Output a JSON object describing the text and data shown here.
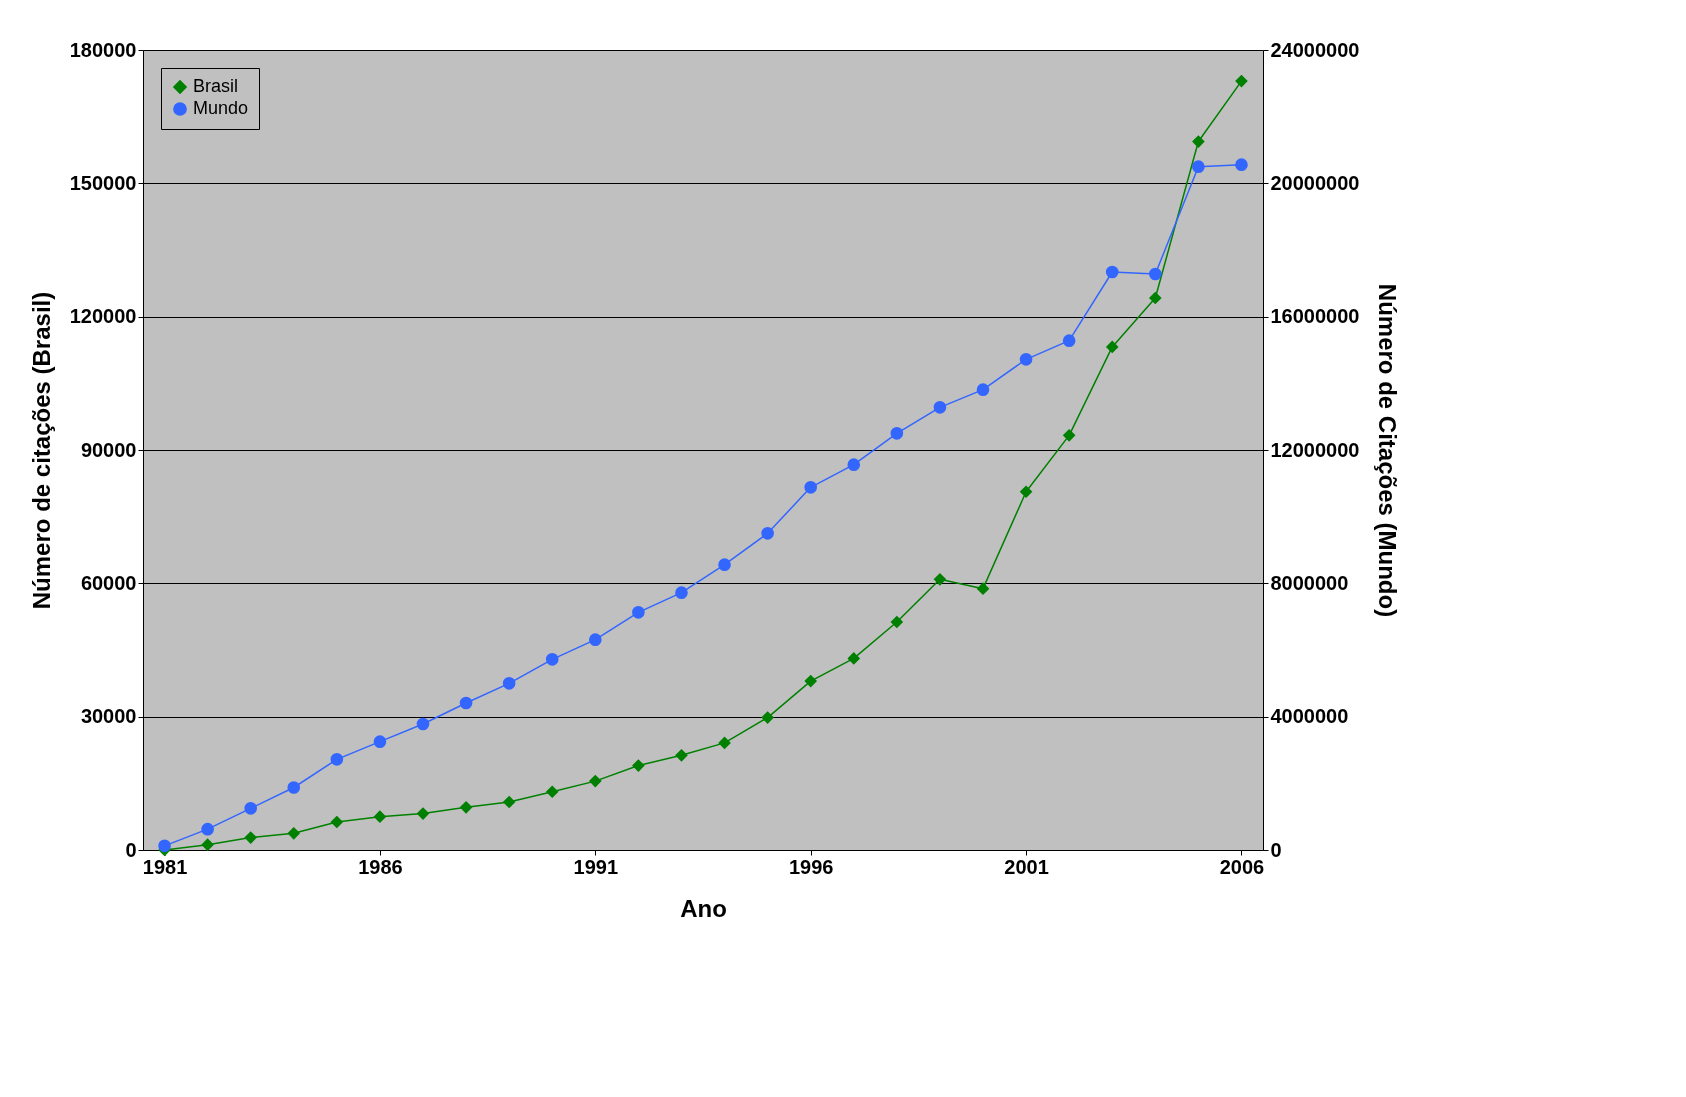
{
  "chart_data": {
    "type": "line",
    "xlabel": "Ano",
    "ylabel": "Número de citações (Brasil)",
    "y2label": "Número de Citações (Mundo)",
    "x": [
      1981,
      1982,
      1983,
      1984,
      1985,
      1986,
      1987,
      1988,
      1989,
      1990,
      1991,
      1992,
      1993,
      1994,
      1995,
      1996,
      1997,
      1998,
      1999,
      2000,
      2001,
      2002,
      2003,
      2004,
      2005,
      2006
    ],
    "xlim": [
      1980.5,
      2006.5
    ],
    "xticks": [
      1981,
      1986,
      1991,
      1996,
      2001,
      2006
    ],
    "ylim": [
      0,
      180000
    ],
    "yticks": [
      0,
      30000,
      60000,
      90000,
      120000,
      150000,
      180000
    ],
    "y2lim": [
      0,
      24000000
    ],
    "y2ticks": [
      0,
      4000000,
      8000000,
      12000000,
      16000000,
      20000000,
      24000000
    ],
    "grid": "y",
    "legend": "top left",
    "series": [
      {
        "name": "Brasil",
        "color": "#008000",
        "marker": "diamond",
        "values": [
          0,
          1200,
          2800,
          3750,
          6300,
          7500,
          8200,
          9600,
          10800,
          13100,
          15500,
          19000,
          21300,
          24100,
          29800,
          38000,
          43100,
          51300,
          60900,
          58800,
          80600,
          93300,
          113200,
          124200,
          159400,
          173000
        ]
      },
      {
        "name": "Mundo",
        "color": "#3366ff",
        "marker": "circle",
        "axis": "y2",
        "values": [
          125000,
          625000,
          1250000,
          1875000,
          2720000,
          3250000,
          3780000,
          4410000,
          5000000,
          5720000,
          6310000,
          7130000,
          7720000,
          8560000,
          9500000,
          10880000,
          11560000,
          12500000,
          13280000,
          13810000,
          14720000,
          15280000,
          17340000,
          17280000,
          20500000,
          20560000
        ]
      }
    ]
  }
}
